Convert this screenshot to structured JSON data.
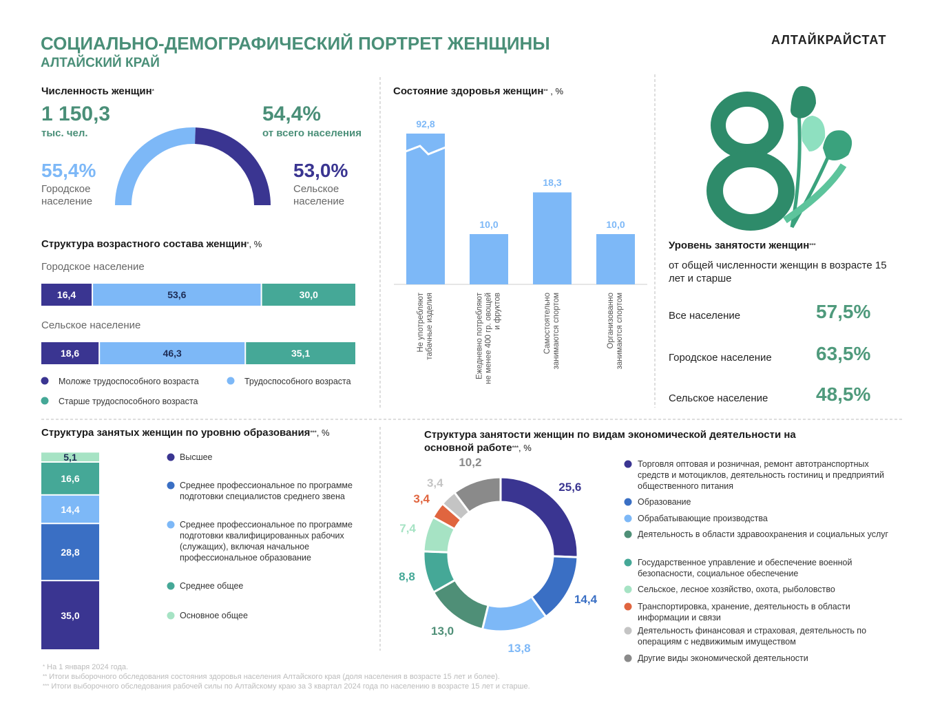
{
  "header": {
    "title": "СОЦИАЛЬНО-ДЕМОГРАФИЧЕСКИЙ ПОРТРЕТ ЖЕНЩИНЫ",
    "subtitle": "АЛТАЙСКИЙ КРАЙ",
    "brand": "АЛТАЙКРАЙСТАТ"
  },
  "population": {
    "title": "Численность женщин",
    "note_mark": "*",
    "total": "1 150,3",
    "total_unit": "тыс. чел.",
    "share": "54,4%",
    "share_label": "от всего населения"
  },
  "chart_data": [
    {
      "type": "gauge",
      "categories": [
        "Городское население",
        "Сельское население"
      ],
      "values": [
        55.4,
        53.0
      ],
      "value_labels": [
        "55,4%",
        "53,0%"
      ],
      "colors": [
        "#7db8f7",
        "#3a3591"
      ]
    },
    {
      "type": "bar",
      "orientation": "horizontal",
      "stacked": true,
      "title": "Структура возрастного состава женщин",
      "note_mark": "*",
      "unit": ", %",
      "categories": [
        "Городское население",
        "Сельское население"
      ],
      "xlim": [
        0,
        100
      ],
      "series": [
        {
          "name": "Моложе трудоспособного возраста",
          "color": "#3a3591",
          "values": [
            16.4,
            18.6
          ],
          "value_labels": [
            "16,4",
            "18,6"
          ]
        },
        {
          "name": "Трудоспособного возраста",
          "color": "#7db8f7",
          "values": [
            53.6,
            46.3
          ],
          "value_labels": [
            "53,6",
            "46,3"
          ]
        },
        {
          "name": "Старше трудоспособного возраста",
          "color": "#45a897",
          "values": [
            30.0,
            35.1
          ],
          "value_labels": [
            "30,0",
            "35,1"
          ]
        }
      ]
    },
    {
      "type": "bar",
      "title": "Состояние здоровья женщин",
      "note_mark": "**",
      "unit": " , %",
      "categories": [
        "Не употребляют табачные изделия",
        "Ежедневно потребляют не менее 400 гр. овощей и фруктов",
        "Самостоятельно занимаются спортом",
        "Организованно занимаются спортом"
      ],
      "values": [
        92.8,
        10.0,
        18.3,
        10.0
      ],
      "value_labels": [
        "92,8",
        "10,0",
        "18,3",
        "10,0"
      ],
      "color": "#7db8f7",
      "ylim": [
        0,
        30
      ],
      "axis_break": true
    },
    {
      "type": "bar",
      "stacked": true,
      "title": "Структура занятых женщин по уровню образования",
      "note_mark": "***",
      "unit": ", %",
      "categories": [
        null
      ],
      "ylim": [
        0,
        100
      ],
      "series": [
        {
          "name": "Высшее",
          "color": "#3a3591",
          "values": [
            35.0
          ],
          "value_labels": [
            "35,0"
          ]
        },
        {
          "name": "Среднее профессиональное по программе подготовки специалистов среднего звена",
          "color": "#3a6fc4",
          "values": [
            28.8
          ],
          "value_labels": [
            "28,8"
          ]
        },
        {
          "name": "Среднее профессиональное по программе подготовки квалифицированных рабочих (служащих), включая начальное профессиональное образование",
          "color": "#7db8f7",
          "values": [
            14.4
          ],
          "value_labels": [
            "14,4"
          ]
        },
        {
          "name": "Среднее общее",
          "color": "#45a897",
          "values": [
            16.6
          ],
          "value_labels": [
            "16,6"
          ]
        },
        {
          "name": "Основное общее",
          "color": "#a6e3c4",
          "values": [
            5.1
          ],
          "value_labels": [
            "5,1"
          ]
        }
      ]
    },
    {
      "type": "pie",
      "donut": true,
      "title": "Структура занятости женщин  по видам экономической деятельности на основной работе",
      "note_mark": "***",
      "unit": ", %",
      "categories": [
        "Торговля оптовая и розничная, ремонт автотранспортных средств и мотоциклов, деятельность гостиниц и предприятий общественного питания",
        "Образование",
        "Обрабатывающие производства",
        "Деятельность в области здравоохранения и социальных услуг",
        "Государственное управление и обеспечение военной безопасности, социальное обеспечение",
        "Сельское, лесное хозяйство, охота, рыболовство",
        "Транспортировка, хранение, деятельность в области информации и связи",
        "Деятельность финансовая и страховая, деятельность по операциям с недвижимым имуществом",
        "Другие виды экономической деятельности"
      ],
      "values": [
        25.6,
        14.4,
        13.8,
        13.0,
        8.8,
        7.4,
        3.4,
        3.4,
        10.2
      ],
      "value_labels": [
        "25,6",
        "14,4",
        "13,8",
        "13,0",
        "8,8",
        "7,4",
        "3,4",
        "3,4",
        "10,2"
      ],
      "colors": [
        "#3a3591",
        "#3a6fc4",
        "#7db8f7",
        "#4f8f77",
        "#45a897",
        "#a6e3c4",
        "#e0653f",
        "#c4c4c4",
        "#8a8a8a"
      ]
    }
  ],
  "employment": {
    "title": "Уровень занятости женщин",
    "note_mark": "***",
    "subtitle": "от общей численности женщин в возрасте 15 лет и старше",
    "rows": [
      {
        "label": "Все население",
        "value": "57,5%"
      },
      {
        "label": "Городское население",
        "value": "63,5%"
      },
      {
        "label": "Сельское население",
        "value": "48,5%"
      }
    ]
  },
  "footnotes": [
    {
      "mark": "*",
      "text": "На 1 января 2024 года."
    },
    {
      "mark": "**",
      "text": "Итоги выборочного обследования состояния здоровья населения Алтайского края (доля населения в возрасте 15 лет и более)."
    },
    {
      "mark": "***",
      "text": "Итоги выборочного обследования рабочей силы по Алтайскому краю за 3 квартал 2024 года по населению в возрасте 15 лет и старше."
    }
  ]
}
